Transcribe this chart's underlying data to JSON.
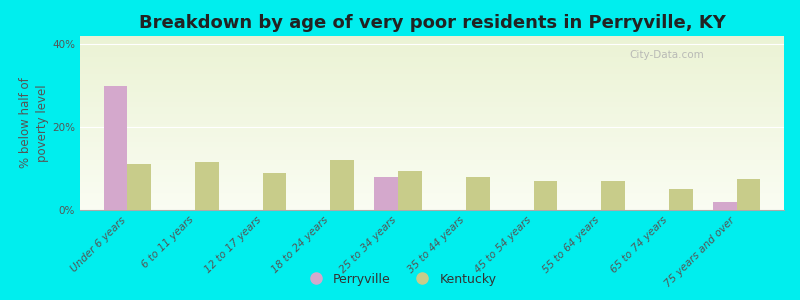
{
  "title": "Breakdown by age of very poor residents in Perryville, KY",
  "ylabel": "% below half of\npoverty level",
  "categories": [
    "Under 6 years",
    "6 to 11 years",
    "12 to 17 years",
    "18 to 24 years",
    "25 to 34 years",
    "35 to 44 years",
    "45 to 54 years",
    "55 to 64 years",
    "65 to 74 years",
    "75 years and over"
  ],
  "perryville_values": [
    30.0,
    0,
    0,
    0,
    8.0,
    0,
    0,
    0,
    0,
    2.0
  ],
  "kentucky_values": [
    11.0,
    11.5,
    9.0,
    12.0,
    9.5,
    8.0,
    7.0,
    7.0,
    5.0,
    7.5
  ],
  "perryville_color": "#d4a8cc",
  "kentucky_color": "#c8cc8a",
  "background_color": "#00eeee",
  "ylim": [
    0,
    42
  ],
  "yticks": [
    0,
    20,
    40
  ],
  "ytick_labels": [
    "0%",
    "20%",
    "40%"
  ],
  "bar_width": 0.35,
  "title_fontsize": 13,
  "axis_label_fontsize": 8.5,
  "tick_fontsize": 7.5,
  "legend_fontsize": 9,
  "watermark_text": "City-Data.com"
}
